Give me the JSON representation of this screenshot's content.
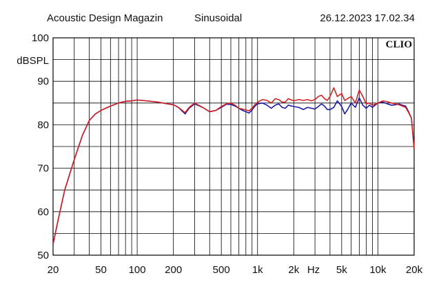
{
  "header": {
    "left": "Acoustic Design Magazin",
    "center": "Sinusoidal",
    "right": "26.12.2023 17.02.34"
  },
  "badge": "CLIO",
  "chart_data": {
    "type": "line",
    "xscale": "log",
    "xlim": [
      20,
      20000
    ],
    "ylim": [
      50,
      100
    ],
    "ylabel": "dBSPL",
    "xlabel": "Hz",
    "grid": true,
    "yticks": [
      50,
      60,
      70,
      80,
      90,
      100
    ],
    "xticks": [
      {
        "value": 20,
        "label": "20"
      },
      {
        "value": 50,
        "label": "50"
      },
      {
        "value": 100,
        "label": "100"
      },
      {
        "value": 200,
        "label": "200"
      },
      {
        "value": 500,
        "label": "500"
      },
      {
        "value": 1000,
        "label": "1k"
      },
      {
        "value": 2000,
        "label": "2k"
      },
      {
        "value": 5000,
        "label": "5k"
      },
      {
        "value": 10000,
        "label": "10k"
      },
      {
        "value": 20000,
        "label": "20k"
      }
    ],
    "x": [
      20,
      22,
      25,
      30,
      35,
      40,
      45,
      50,
      60,
      70,
      80,
      90,
      100,
      120,
      150,
      180,
      200,
      220,
      250,
      270,
      300,
      350,
      400,
      450,
      500,
      550,
      600,
      650,
      700,
      750,
      800,
      850,
      900,
      950,
      1000,
      1100,
      1200,
      1300,
      1400,
      1500,
      1600,
      1700,
      1800,
      2000,
      2200,
      2400,
      2600,
      2800,
      3000,
      3200,
      3400,
      3600,
      3800,
      4000,
      4300,
      4600,
      5000,
      5300,
      5600,
      6000,
      6500,
      7000,
      7500,
      8000,
      8500,
      9000,
      10000,
      11000,
      12000,
      13000,
      14000,
      15000,
      16000,
      17000,
      18000,
      19000,
      20000
    ],
    "series": [
      {
        "color": "#1a1aa6",
        "values": [
          52.5,
          58.0,
          65.0,
          72.0,
          77.5,
          81.0,
          82.5,
          83.3,
          84.3,
          85.0,
          85.4,
          85.5,
          85.7,
          85.5,
          85.2,
          84.8,
          84.6,
          84.0,
          82.5,
          83.8,
          84.8,
          84.0,
          83.0,
          83.3,
          84.0,
          84.7,
          84.7,
          84.3,
          83.8,
          83.3,
          83.0,
          82.7,
          83.4,
          84.3,
          84.8,
          85.0,
          84.5,
          83.8,
          84.5,
          84.8,
          84.0,
          83.8,
          84.5,
          84.2,
          84.0,
          83.5,
          84.0,
          83.8,
          83.6,
          84.2,
          84.8,
          84.3,
          83.5,
          83.5,
          84.0,
          85.5,
          84.2,
          82.5,
          83.5,
          85.0,
          84.0,
          86.2,
          84.5,
          83.8,
          84.5,
          84.0,
          85.0,
          85.2,
          84.8,
          84.5,
          84.6,
          84.8,
          84.5,
          84.3,
          83.0,
          81.5,
          74.5
        ]
      },
      {
        "color": "#d42020",
        "values": [
          52.5,
          58.0,
          65.0,
          72.0,
          77.5,
          81.0,
          82.5,
          83.3,
          84.3,
          85.0,
          85.4,
          85.5,
          85.7,
          85.5,
          85.2,
          84.8,
          84.6,
          84.0,
          82.8,
          84.0,
          85.0,
          84.0,
          83.0,
          83.3,
          84.2,
          84.8,
          85.0,
          84.5,
          83.8,
          83.6,
          83.4,
          83.2,
          83.8,
          84.6,
          85.2,
          85.8,
          85.6,
          85.0,
          86.0,
          85.8,
          85.2,
          85.2,
          86.0,
          85.5,
          85.8,
          85.6,
          85.8,
          85.5,
          85.8,
          86.5,
          86.8,
          86.0,
          85.6,
          86.5,
          88.5,
          86.5,
          87.2,
          85.6,
          86.0,
          86.5,
          85.0,
          88.0,
          86.5,
          84.8,
          85.0,
          84.5,
          85.0,
          85.5,
          85.3,
          85.0,
          84.8,
          84.6,
          84.3,
          84.0,
          82.8,
          81.5,
          74.5
        ]
      }
    ]
  }
}
